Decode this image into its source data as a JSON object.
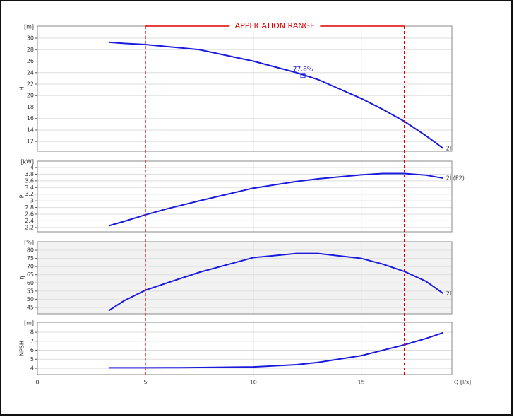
{
  "chart_data": [
    {
      "type": "line",
      "ylabel": "H",
      "yunit": "[m]",
      "x": [
        3.3,
        4,
        5,
        6,
        7.5,
        10,
        12,
        13,
        15,
        16,
        17,
        18,
        18.8
      ],
      "xlim": [
        0,
        19.2
      ],
      "ylim": [
        10.3,
        32.1
      ],
      "yticks": [
        12,
        14,
        16,
        18,
        20,
        22,
        24,
        26,
        28,
        30
      ],
      "series": [
        {
          "name": "2I",
          "color": "#1a1adc",
          "values": [
            29.3,
            29.1,
            28.9,
            28.55,
            28.0,
            26.0,
            24.0,
            22.8,
            19.5,
            17.6,
            15.5,
            13.0,
            10.8
          ]
        }
      ],
      "annotation": {
        "x": 12.3,
        "y": 23.5,
        "label": "77.8%"
      },
      "range": {
        "label": "APPLICATION RANGE",
        "x": [
          5,
          17
        ],
        "color": "#e00000"
      }
    },
    {
      "type": "line",
      "ylabel": "P",
      "yunit": "[kW]",
      "x": [
        3.3,
        4,
        5,
        6,
        7.5,
        10,
        12,
        13,
        15,
        16,
        17,
        18,
        18.8
      ],
      "xlim": [
        0,
        19.2
      ],
      "ylim": [
        2.07,
        4.19
      ],
      "yticks": [
        2.2,
        2.4,
        2.6,
        2.8,
        3,
        3.2,
        3.4,
        3.6,
        3.8,
        4
      ],
      "series": [
        {
          "name": "2I (P2)",
          "color": "#1a1adc",
          "values": [
            2.25,
            2.38,
            2.58,
            2.76,
            3.0,
            3.38,
            3.58,
            3.66,
            3.78,
            3.82,
            3.82,
            3.77,
            3.68
          ]
        }
      ]
    },
    {
      "type": "line",
      "ylabel": "η",
      "yunit": "[%]",
      "background": "#f2f2f2",
      "x": [
        3.3,
        4,
        5,
        6,
        7.5,
        10,
        12,
        13,
        15,
        16,
        17,
        18,
        18.8
      ],
      "xlim": [
        0,
        19.2
      ],
      "ylim": [
        41.1,
        85.2
      ],
      "yticks": [
        45,
        50,
        55,
        60,
        65,
        70,
        75,
        80
      ],
      "series": [
        {
          "name": "2I",
          "color": "#1a1adc",
          "values": [
            43,
            49,
            55.5,
            60,
            66.5,
            75.5,
            78,
            78,
            75,
            71.5,
            67,
            61,
            53.5
          ]
        }
      ]
    },
    {
      "type": "line",
      "ylabel": "NPSH",
      "yunit": "[m]",
      "x": [
        3.3,
        4,
        5,
        6,
        7.5,
        10,
        12,
        13,
        15,
        16,
        17,
        18,
        18.8
      ],
      "xlim": [
        0,
        19.2
      ],
      "ylim": [
        3.3,
        9.1
      ],
      "yticks": [
        4,
        5,
        6,
        7,
        8
      ],
      "xticks": [
        0,
        5,
        10,
        15
      ],
      "xlabel": "Q [l/s]",
      "series": [
        {
          "color": "#1a1adc",
          "values": [
            4.05,
            4.05,
            4.05,
            4.06,
            4.08,
            4.15,
            4.4,
            4.65,
            5.4,
            6.0,
            6.6,
            7.3,
            7.95
          ]
        }
      ]
    }
  ]
}
